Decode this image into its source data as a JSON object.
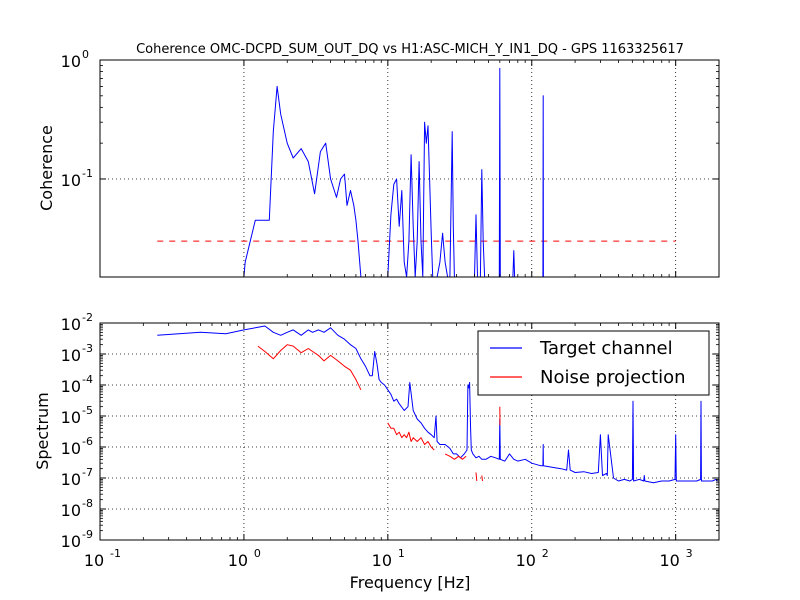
{
  "figure": {
    "title": "Coherence OMC-DCPD_SUM_OUT_DQ vs H1:ASC-MICH_Y_IN1_DQ - GPS 1163325617",
    "xlabel": "Frequency [Hz]"
  },
  "colors": {
    "target": "#0000ff",
    "noise": "#ff0000",
    "threshold": "#ff0000",
    "grid": "#000000"
  },
  "chart_data": [
    {
      "type": "line",
      "panel": "coherence",
      "title": "Coherence OMC-DCPD_SUM_OUT_DQ vs H1:ASC-MICH_Y_IN1_DQ - GPS 1163325617",
      "ylabel": "Coherence",
      "xscale": "log",
      "yscale": "log",
      "xlim": [
        0.1,
        2000
      ],
      "ylim": [
        0.015,
        1
      ],
      "grid": true,
      "x_ticks": [
        1,
        10,
        100,
        1000
      ],
      "y_ticks": [
        {
          "value": 1,
          "mantissa": "10",
          "exp": "0"
        },
        {
          "value": 0.1,
          "mantissa": "10",
          "exp": "-1"
        }
      ],
      "threshold": {
        "x": [
          0.25,
          1000
        ],
        "y": 0.03
      },
      "series": [
        {
          "color": "#0000ff",
          "x": [
            1.0,
            1.02,
            1.2,
            1.5,
            1.6,
            1.7,
            1.8,
            2.0,
            2.2,
            2.5,
            2.8,
            3.1,
            3.4,
            3.7,
            4.0,
            4.4,
            4.7,
            5.0,
            5.2,
            5.5,
            5.8,
            6.0,
            6.2,
            6.5,
            6.7,
            7.0,
            7.3,
            7.6,
            8.0,
            8.5,
            9.0,
            9.5,
            10.0,
            10.5,
            11.0,
            11.5,
            12.0,
            12.5,
            13.0,
            13.5,
            14.0,
            14.5,
            15.0,
            15.5,
            16.0,
            16.5,
            17.0,
            17.5,
            18.0,
            18.5,
            19.0,
            19.5,
            20.0,
            20.5,
            21.0,
            22.0,
            23.0,
            24.0,
            25.0,
            26.0,
            27.0,
            28.0,
            28.5,
            29.0,
            29.5,
            30.0,
            31.0,
            32.0,
            33.0,
            34.0,
            35.0,
            36.0,
            37.0,
            38.0,
            39.0,
            40.0,
            41.0,
            42.0,
            43.0,
            44.0,
            45.0,
            46.0,
            47.0,
            48.0,
            49.0,
            50.0,
            52.0,
            54.0,
            56.0,
            58.0,
            59.5,
            60.0,
            60.5,
            62.0,
            65.0,
            68.0,
            71.0,
            74.0,
            75.0,
            76.0,
            78.0,
            82.0,
            86.0,
            90.0,
            95.0,
            100.0,
            105.0,
            110.0,
            115.0,
            118.0,
            119.5,
            120.0,
            120.5,
            122.0
          ],
          "y": [
            0.015,
            0.02,
            0.045,
            0.045,
            0.25,
            0.6,
            0.35,
            0.2,
            0.15,
            0.18,
            0.14,
            0.075,
            0.17,
            0.2,
            0.1,
            0.07,
            0.1,
            0.11,
            0.06,
            0.08,
            0.06,
            0.045,
            0.03,
            0.015,
            0.015,
            0.015,
            0.015,
            0.015,
            0.015,
            0.015,
            0.015,
            0.015,
            0.015,
            0.05,
            0.09,
            0.1,
            0.04,
            0.08,
            0.02,
            0.015,
            0.03,
            0.16,
            0.04,
            0.015,
            0.03,
            0.14,
            0.03,
            0.015,
            0.3,
            0.2,
            0.28,
            0.1,
            0.035,
            0.015,
            0.015,
            0.015,
            0.02,
            0.035,
            0.02,
            0.015,
            0.015,
            0.25,
            0.04,
            0.015,
            0.015,
            0.015,
            0.015,
            0.015,
            0.015,
            0.015,
            0.015,
            0.015,
            0.015,
            0.015,
            0.015,
            0.015,
            0.05,
            0.015,
            0.015,
            0.015,
            0.12,
            0.03,
            0.015,
            0.015,
            0.015,
            0.015,
            0.015,
            0.015,
            0.015,
            0.015,
            0.015,
            0.85,
            0.015,
            0.015,
            0.015,
            0.015,
            0.015,
            0.015,
            0.025,
            0.015,
            0.015,
            0.015,
            0.015,
            0.015,
            0.015,
            0.015,
            0.015,
            0.015,
            0.015,
            0.015,
            0.015,
            0.5,
            0.015,
            0.015
          ]
        }
      ]
    },
    {
      "type": "line",
      "panel": "spectrum",
      "ylabel": "Spectrum",
      "xlabel": "Frequency [Hz]",
      "xscale": "log",
      "yscale": "log",
      "xlim": [
        0.1,
        2000
      ],
      "ylim": [
        1e-09,
        0.01
      ],
      "grid": true,
      "legend_position": "top-right",
      "x_ticks": [
        {
          "value": 0.1,
          "mantissa": "10",
          "exp": "-1"
        },
        {
          "value": 1,
          "mantissa": "10",
          "exp": "0"
        },
        {
          "value": 10,
          "mantissa": "10",
          "exp": "1"
        },
        {
          "value": 100,
          "mantissa": "10",
          "exp": "2"
        },
        {
          "value": 1000,
          "mantissa": "10",
          "exp": "3"
        }
      ],
      "y_ticks": [
        {
          "value": 0.01,
          "mantissa": "10",
          "exp": "-2"
        },
        {
          "value": 0.001,
          "mantissa": "10",
          "exp": "-3"
        },
        {
          "value": 0.0001,
          "mantissa": "10",
          "exp": "-4"
        },
        {
          "value": 1e-05,
          "mantissa": "10",
          "exp": "-5"
        },
        {
          "value": 1e-06,
          "mantissa": "10",
          "exp": "-6"
        },
        {
          "value": 1e-07,
          "mantissa": "10",
          "exp": "-7"
        },
        {
          "value": 1e-08,
          "mantissa": "10",
          "exp": "-8"
        },
        {
          "value": 1e-09,
          "mantissa": "10",
          "exp": "-9"
        }
      ],
      "series": [
        {
          "name": "Target channel",
          "color": "#0000ff",
          "x": [
            0.25,
            0.5,
            0.75,
            1.0,
            1.2,
            1.4,
            1.6,
            1.8,
            2.0,
            2.2,
            2.5,
            2.8,
            3.0,
            3.3,
            3.6,
            4.0,
            4.5,
            5.0,
            5.5,
            6.0,
            6.5,
            7.0,
            7.5,
            7.8,
            8.1,
            8.4,
            8.7,
            9.0,
            9.5,
            10.0,
            10.5,
            11.0,
            11.5,
            12.0,
            13.0,
            13.8,
            14.2,
            15.0,
            16.0,
            17.0,
            18.0,
            19.0,
            20.0,
            21.0,
            21.6,
            22.0,
            23.0,
            25.0,
            27.0,
            28.5,
            30.0,
            32.0,
            34.0,
            35.5,
            36.0,
            36.5,
            37.0,
            37.5,
            38.0,
            39.0,
            41.0,
            43.0,
            45.0,
            48.0,
            52.0,
            56.0,
            59.5,
            60.0,
            60.5,
            65.0,
            70.0,
            75.0,
            80.0,
            90.0,
            100.0,
            115.0,
            119.5,
            120.0,
            120.5,
            140.0,
            160.0,
            175.0,
            180.0,
            185.0,
            200.0,
            230.0,
            260.0,
            290.0,
            300.0,
            310.0,
            330.0,
            335.0,
            340.0,
            370.0,
            400.0,
            440.0,
            480.0,
            500.0,
            505.0,
            510.0,
            560.0,
            600.0,
            605.0,
            610.0,
            700.0,
            800.0,
            900.0,
            990.0,
            1000.0,
            1010.0,
            1030.0,
            1200.0,
            1400.0,
            1490.0,
            1500.0,
            1510.0,
            1650.0,
            1800.0,
            1900.0,
            1950.0,
            2000.0
          ],
          "y": [
            0.004,
            0.005,
            0.0045,
            0.006,
            0.007,
            0.008,
            0.005,
            0.004,
            0.005,
            0.006,
            0.004,
            0.006,
            0.005,
            0.006,
            0.005,
            0.007,
            0.004,
            0.003,
            0.002,
            0.0015,
            0.0007,
            0.0004,
            0.0002,
            0.0002,
            0.0012,
            0.0005,
            0.00015,
            0.00012,
            0.0001,
            7e-05,
            5e-05,
            3e-05,
            3.5e-05,
            2.5e-05,
            1.5e-05,
            2e-05,
            0.00012,
            1.5e-05,
            8e-06,
            6e-06,
            4e-06,
            3e-06,
            2.5e-06,
            2e-06,
            1e-05,
            1.5e-06,
            1.2e-06,
            1.2e-06,
            9e-07,
            6e-07,
            6e-07,
            4.5e-07,
            6e-07,
            8e-07,
            0.0001,
            8e-05,
            0.00012,
            5e-06,
            8e-07,
            6e-07,
            4.5e-07,
            5e-07,
            4e-07,
            4e-07,
            5e-07,
            4.5e-07,
            4e-07,
            8e-06,
            4e-07,
            3.5e-07,
            6e-07,
            4e-07,
            3.5e-07,
            4e-07,
            3e-07,
            2.5e-07,
            2.5e-07,
            1.2e-06,
            2.5e-07,
            2.2e-07,
            2e-07,
            1.8e-07,
            8e-07,
            1.8e-07,
            1.5e-07,
            1.6e-07,
            1.4e-07,
            1.5e-07,
            2.5e-06,
            1.2e-07,
            1.4e-07,
            1.2e-07,
            2.5e-06,
            1e-07,
            8e-08,
            9e-08,
            8e-08,
            9e-08,
            3e-05,
            8e-08,
            9e-08,
            8e-08,
            1.2e-07,
            8e-08,
            7e-08,
            8e-08,
            8e-08,
            9e-08,
            2.5e-06,
            8e-08,
            8e-08,
            8e-08,
            8e-08,
            9e-08,
            3e-05,
            8e-08,
            8e-08,
            8e-08,
            9e-08,
            8e-08,
            8e-08
          ]
        },
        {
          "name": "Noise projection",
          "color": "#ff0000",
          "segments": [
            {
              "x": [
                1.25,
                1.4,
                1.6,
                1.8,
                2.0,
                2.2,
                2.5,
                2.8,
                3.0,
                3.3,
                3.6,
                4.0,
                4.5,
                5.0,
                5.5,
                6.0,
                6.5
              ],
              "y": [
                0.0018,
                0.0012,
                0.0007,
                0.0013,
                0.002,
                0.0018,
                0.0011,
                0.0015,
                0.0012,
                0.0009,
                0.0006,
                0.0009,
                0.0006,
                0.0004,
                0.0003,
                0.00015,
                7e-05
              ]
            },
            {
              "x": [
                10.0,
                10.5,
                11.0,
                11.5,
                12.0,
                12.5,
                13.0,
                13.5,
                14.0,
                14.5,
                15.0,
                16.0,
                17.0,
                18.0,
                19.0,
                20.0,
                21.0
              ],
              "y": [
                6e-06,
                4e-06,
                4e-06,
                2.5e-06,
                3e-06,
                2e-06,
                2.5e-06,
                2e-06,
                3e-06,
                1.5e-06,
                2e-06,
                1.5e-06,
                2e-06,
                1.2e-06,
                1.5e-06,
                1e-06,
                8e-07
              ]
            },
            {
              "x": [
                25.0,
                27.0,
                29.0,
                31.0,
                33.0,
                35.0
              ],
              "y": [
                6e-07,
                5e-07,
                4e-07,
                5e-07,
                4e-07,
                5e-07
              ]
            },
            {
              "x": [
                41.0,
                41.5
              ],
              "y": [
                1.5e-07,
                8e-08
              ]
            },
            {
              "x": [
                45.0,
                45.5
              ],
              "y": [
                1.2e-07,
                8e-08
              ]
            },
            {
              "x": [
                60.0,
                60.2
              ],
              "y": [
                2e-05,
                5e-06
              ]
            }
          ]
        }
      ]
    }
  ]
}
